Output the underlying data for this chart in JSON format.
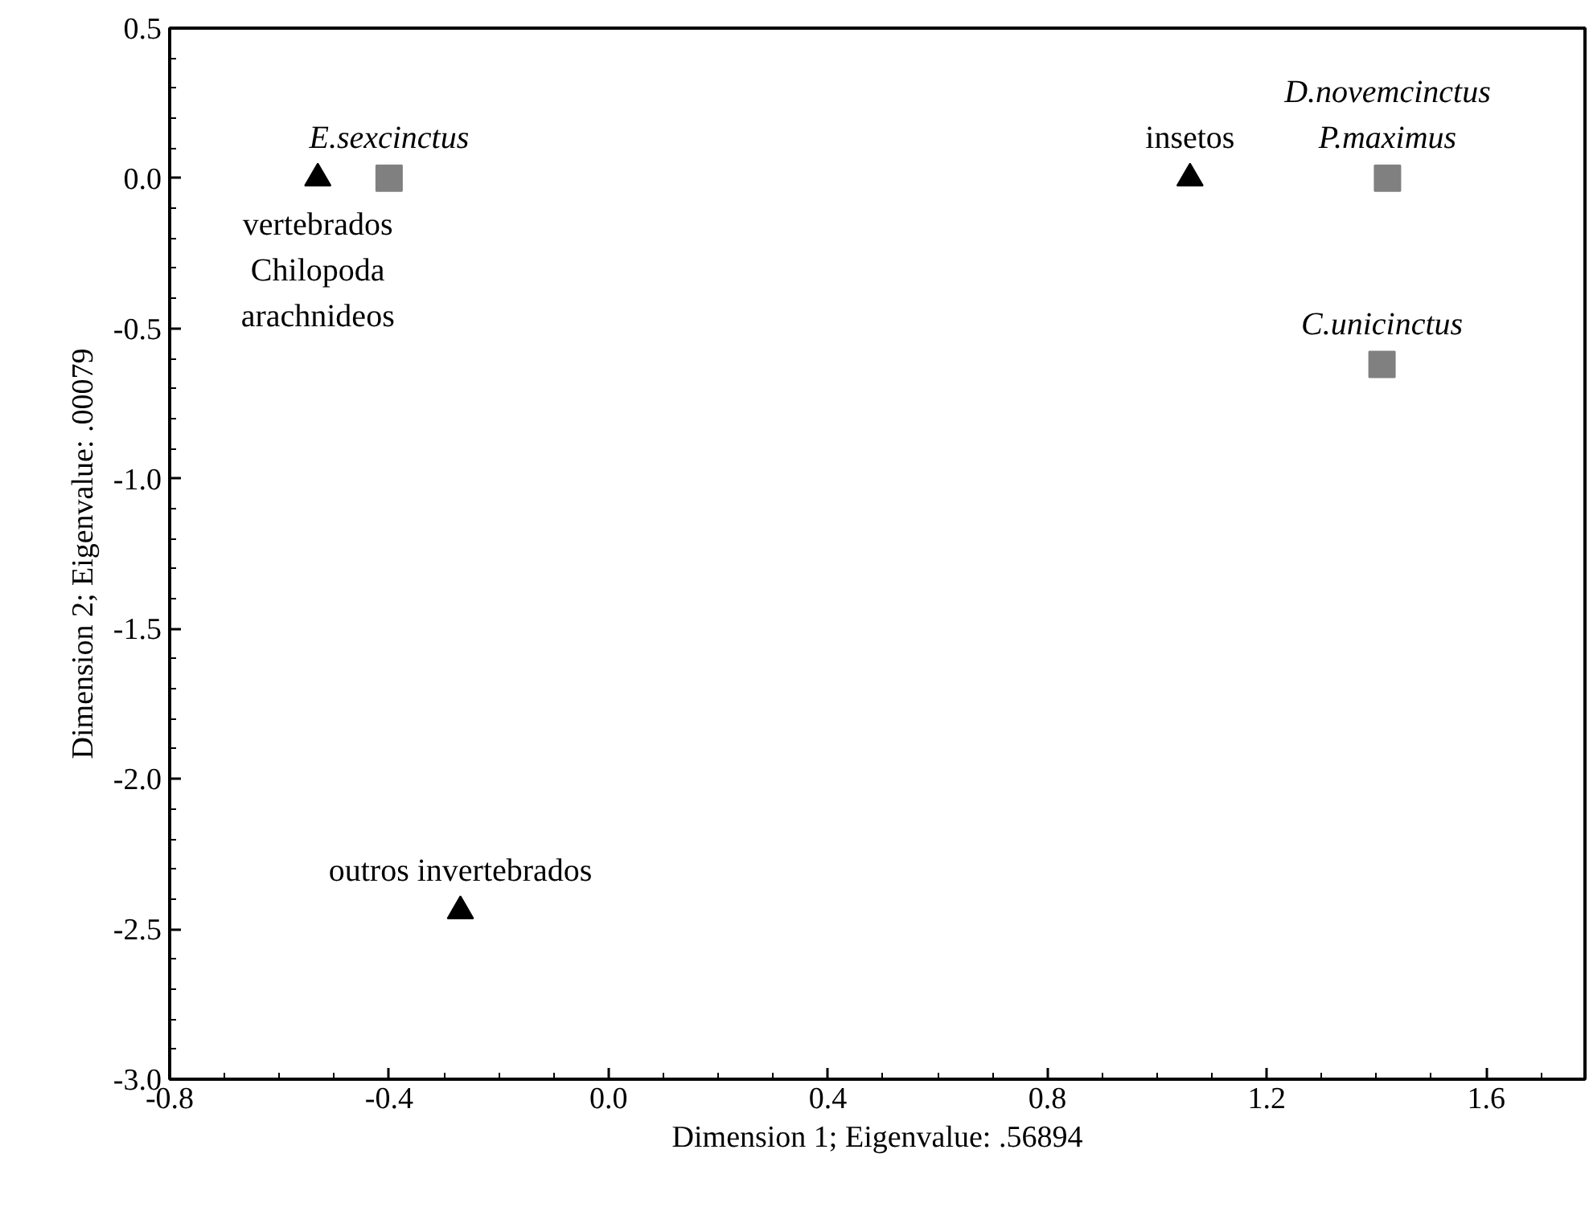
{
  "chart_data": {
    "type": "scatter",
    "xlabel": "Dimension 1; Eigenvalue: .56894",
    "ylabel": "Dimension 2; Eigenvalue: .00079",
    "series": [
      {
        "color": "#000000",
        "marker": "triangle",
        "x": [
          -0.53,
          1.06,
          -0.27
        ],
        "values": [
          0,
          0,
          -2.44
        ]
      },
      {
        "color": "#808080",
        "marker": "square",
        "x": [
          -0.4,
          1.42,
          1.41
        ],
        "values": [
          0,
          0,
          -0.62
        ]
      }
    ],
    "annotations": [
      {
        "text": "vertebrados\nChilopoda\narachnideos",
        "x": -0.53,
        "y": 0
      },
      {
        "text": "insetos",
        "x": 1.06,
        "y": 0
      },
      {
        "text": "outros invertebrados",
        "x": -0.27,
        "y": -2.44
      },
      {
        "text": "E.sexcinctus",
        "x": -0.4,
        "y": 0
      },
      {
        "text": "D.novemcinctus\nP.maximus",
        "x": 1.42,
        "y": 0
      },
      {
        "text": "C.unicinctus",
        "x": 1.41,
        "y": -0.62
      }
    ],
    "xlim": [
      -0.8,
      1.78
    ],
    "ylim": [
      -3.0,
      0.5
    ],
    "xticks": [
      {
        "value": -0.8,
        "label": "-0.8"
      },
      {
        "value": -0.4,
        "label": "-0.4"
      },
      {
        "value": 0,
        "label": "0.0"
      },
      {
        "value": 0.4,
        "label": "0.4"
      },
      {
        "value": 0.8,
        "label": "0.8"
      },
      {
        "value": 1.2,
        "label": "1.2"
      },
      {
        "value": 1.6,
        "label": "1.6"
      }
    ],
    "yticks": [
      {
        "value": 0.5,
        "label": "0.5"
      },
      {
        "value": 0,
        "label": "0.0"
      },
      {
        "value": -0.5,
        "label": "-0.5"
      },
      {
        "value": -1,
        "label": "-1.0"
      },
      {
        "value": -1.5,
        "label": "-1.5"
      },
      {
        "value": -2,
        "label": "-2.0"
      },
      {
        "value": -2.5,
        "label": "-2.5"
      },
      {
        "value": -3,
        "label": "-3.0"
      }
    ],
    "grid": false
  }
}
